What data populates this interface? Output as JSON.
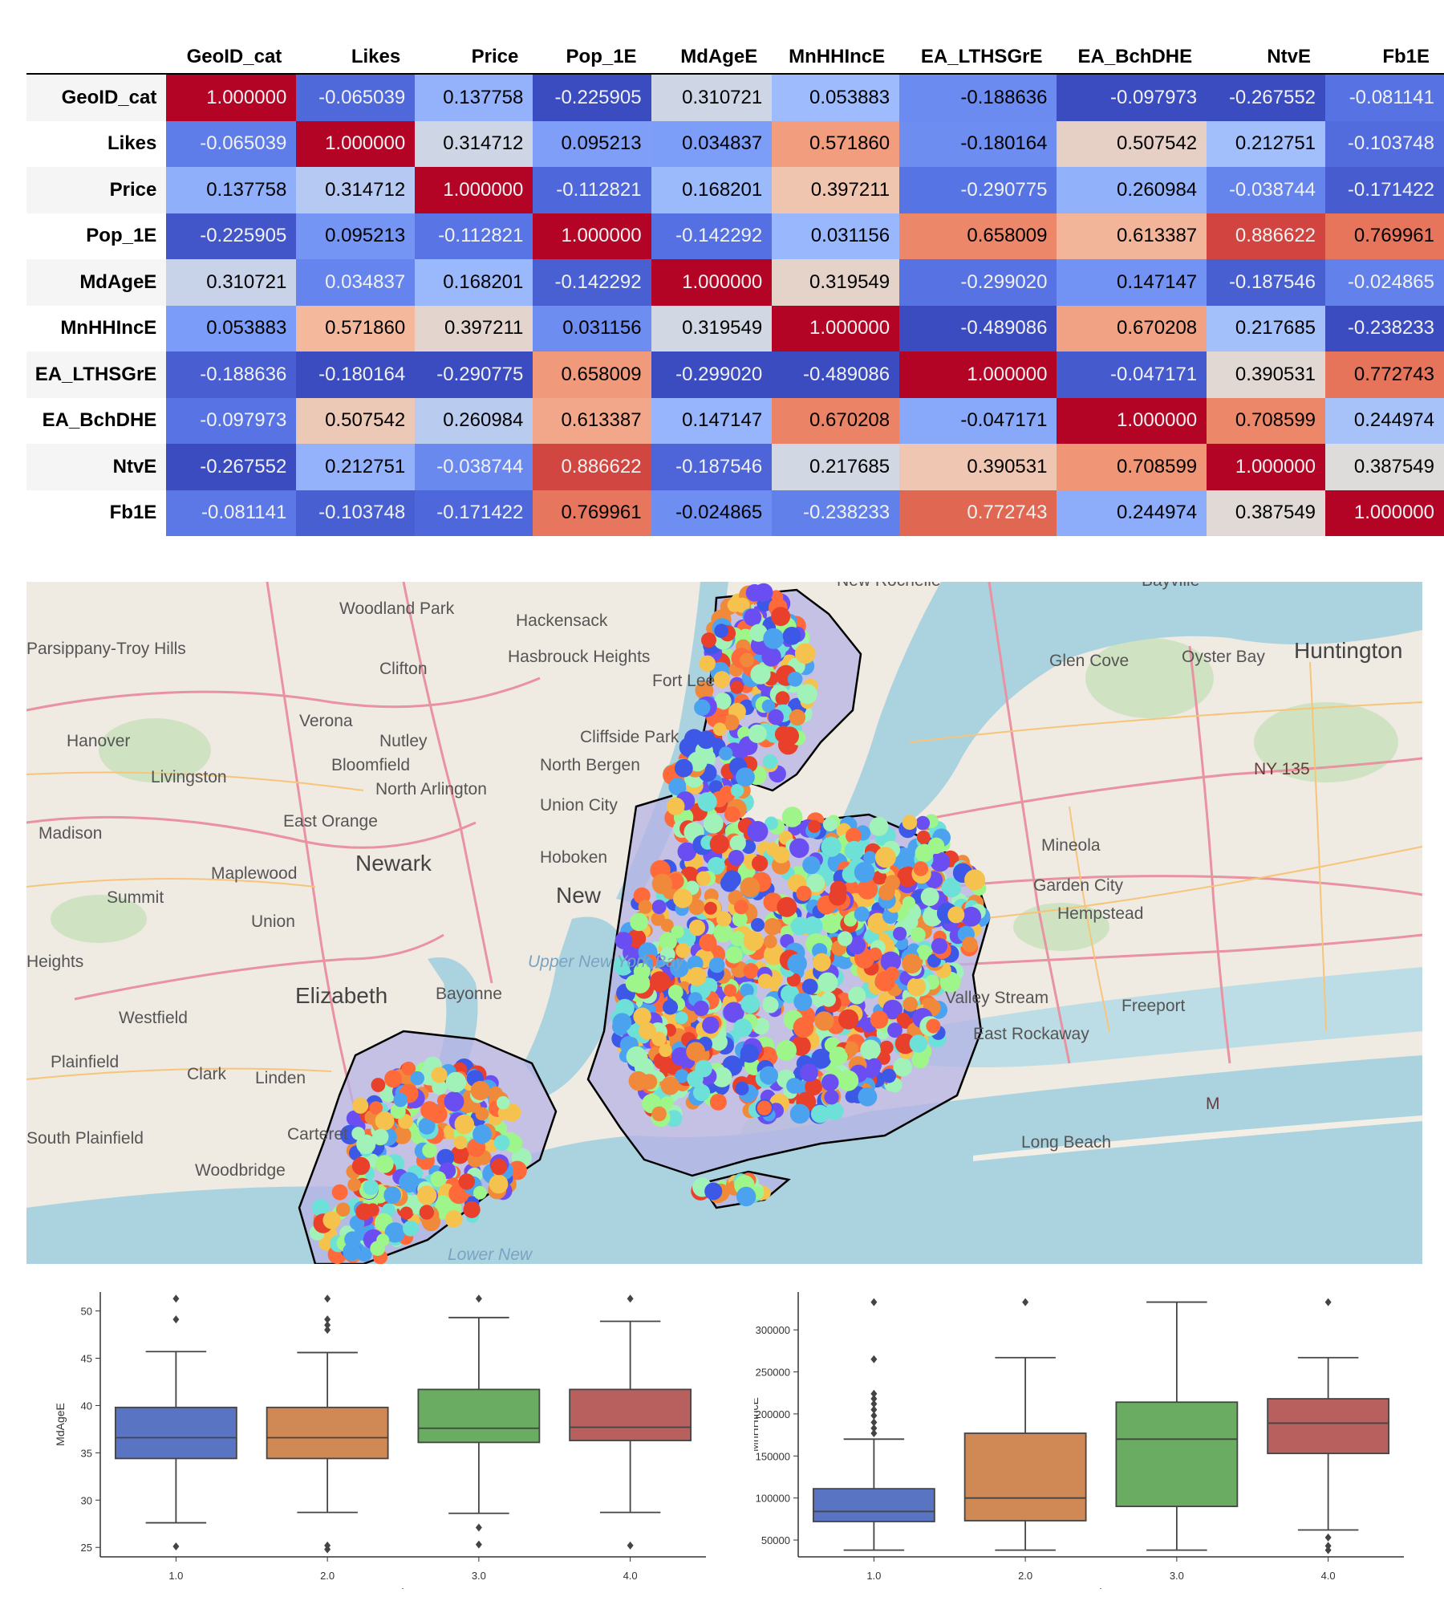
{
  "corr_table": {
    "columns": [
      "GeoID_cat",
      "Likes",
      "Price",
      "Pop_1E",
      "MdAgeE",
      "MnHHIncE",
      "EA_LTHSGrE",
      "EA_BchDHE",
      "NtvE",
      "Fb1E"
    ],
    "rows": [
      {
        "label": "GeoID_cat",
        "values": [
          "1.000000",
          "-0.065039",
          "0.137758",
          "-0.225905",
          "0.310721",
          "0.053883",
          "-0.188636",
          "-0.097973",
          "-0.267552",
          "-0.081141"
        ]
      },
      {
        "label": "Likes",
        "values": [
          "-0.065039",
          "1.000000",
          "0.314712",
          "0.095213",
          "0.034837",
          "0.571860",
          "-0.180164",
          "0.507542",
          "0.212751",
          "-0.103748"
        ]
      },
      {
        "label": "Price",
        "values": [
          "0.137758",
          "0.314712",
          "1.000000",
          "-0.112821",
          "0.168201",
          "0.397211",
          "-0.290775",
          "0.260984",
          "-0.038744",
          "-0.171422"
        ]
      },
      {
        "label": "Pop_1E",
        "values": [
          "-0.225905",
          "0.095213",
          "-0.112821",
          "1.000000",
          "-0.142292",
          "0.031156",
          "0.658009",
          "0.613387",
          "0.886622",
          "0.769961"
        ]
      },
      {
        "label": "MdAgeE",
        "values": [
          "0.310721",
          "0.034837",
          "0.168201",
          "-0.142292",
          "1.000000",
          "0.319549",
          "-0.299020",
          "0.147147",
          "-0.187546",
          "-0.024865"
        ]
      },
      {
        "label": "MnHHIncE",
        "values": [
          "0.053883",
          "0.571860",
          "0.397211",
          "0.031156",
          "0.319549",
          "1.000000",
          "-0.489086",
          "0.670208",
          "0.217685",
          "-0.238233"
        ]
      },
      {
        "label": "EA_LTHSGrE",
        "values": [
          "-0.188636",
          "-0.180164",
          "-0.290775",
          "0.658009",
          "-0.299020",
          "-0.489086",
          "1.000000",
          "-0.047171",
          "0.390531",
          "0.772743"
        ]
      },
      {
        "label": "EA_BchDHE",
        "values": [
          "-0.097973",
          "0.507542",
          "0.260984",
          "0.613387",
          "0.147147",
          "0.670208",
          "-0.047171",
          "1.000000",
          "0.708599",
          "0.244974"
        ]
      },
      {
        "label": "NtvE",
        "values": [
          "-0.267552",
          "0.212751",
          "-0.038744",
          "0.886622",
          "-0.187546",
          "0.217685",
          "0.390531",
          "0.708599",
          "1.000000",
          "0.387549"
        ]
      },
      {
        "label": "Fb1E",
        "values": [
          "-0.081141",
          "-0.103748",
          "-0.171422",
          "0.769961",
          "-0.024865",
          "-0.238233",
          "0.772743",
          "0.244974",
          "0.387549",
          "1.000000"
        ]
      }
    ]
  },
  "map": {
    "labels": [
      "Woodland Park",
      "Hackensack",
      "Parsippany-Troy Hills",
      "Clifton",
      "Hasbrouck Heights",
      "Fort Lee",
      "Glen Cove",
      "Oyster Bay",
      "Huntington",
      "Verona",
      "Nutley",
      "Cliffside Park",
      "North Bergen",
      "Hanover",
      "Bloomfield",
      "Livingston",
      "North Arlington",
      "Union City",
      "NY 135",
      "Madison",
      "East Orange",
      "Hoboken",
      "Mineola",
      "Maplewood",
      "Newark",
      "Garden City",
      "Summit",
      "Hempstead",
      "Union",
      "New",
      "Heights",
      "Elizabeth",
      "Bayonne",
      "Upper New York Bay",
      "Valley Stream",
      "Freeport",
      "Westfield",
      "East Rockaway",
      "Plainfield",
      "Clark",
      "Linden",
      "South Plainfield",
      "Carteret",
      "Long Beach",
      "Woodbridge",
      "Lower New",
      "M",
      "Bayville",
      "New Rochelle"
    ]
  },
  "chart_data": [
    {
      "type": "box",
      "xlabel": "Price",
      "ylabel": "MdAgeE",
      "categories": [
        "1.0",
        "2.0",
        "3.0",
        "4.0"
      ],
      "ylim": [
        24,
        52
      ],
      "yticks": [
        25,
        30,
        35,
        40,
        45,
        50
      ],
      "colors": [
        "#5a74c4",
        "#d08854",
        "#6aac62",
        "#b8605e"
      ],
      "boxes": [
        {
          "whislo": 27.6,
          "q1": 34.4,
          "med": 36.6,
          "q3": 39.8,
          "whishi": 45.7,
          "fliers": [
            25.1,
            49.1,
            51.3
          ]
        },
        {
          "whislo": 28.7,
          "q1": 34.4,
          "med": 36.6,
          "q3": 39.8,
          "whishi": 45.6,
          "fliers": [
            24.8,
            25.2,
            48.0,
            48.5,
            49.1,
            51.3
          ]
        },
        {
          "whislo": 28.6,
          "q1": 36.1,
          "med": 37.6,
          "q3": 41.7,
          "whishi": 49.3,
          "fliers": [
            25.3,
            27.1,
            51.3
          ]
        },
        {
          "whislo": 28.7,
          "q1": 36.3,
          "med": 37.7,
          "q3": 41.7,
          "whishi": 48.9,
          "fliers": [
            25.2,
            51.3
          ]
        }
      ]
    },
    {
      "type": "box",
      "xlabel": "Price",
      "ylabel": "MnHHIncE",
      "categories": [
        "1.0",
        "2.0",
        "3.0",
        "4.0"
      ],
      "ylim": [
        30000,
        345000
      ],
      "yticks": [
        50000,
        100000,
        150000,
        200000,
        250000,
        300000
      ],
      "colors": [
        "#5a74c4",
        "#d08854",
        "#6aac62",
        "#b8605e"
      ],
      "boxes": [
        {
          "whislo": 38000,
          "q1": 72000,
          "med": 84000,
          "q3": 111000,
          "whishi": 170000,
          "fliers": [
            177000,
            183000,
            190000,
            198000,
            205000,
            212000,
            218000,
            224000,
            265000,
            333000
          ]
        },
        {
          "whislo": 38000,
          "q1": 73000,
          "med": 100000,
          "q3": 177000,
          "whishi": 267000,
          "fliers": [
            333000
          ]
        },
        {
          "whislo": 38000,
          "q1": 90000,
          "med": 170000,
          "q3": 214000,
          "whishi": 333000,
          "fliers": []
        },
        {
          "whislo": 62000,
          "q1": 153000,
          "med": 189000,
          "q3": 218000,
          "whishi": 267000,
          "fliers": [
            38000,
            43000,
            53000,
            333000
          ]
        }
      ]
    }
  ]
}
